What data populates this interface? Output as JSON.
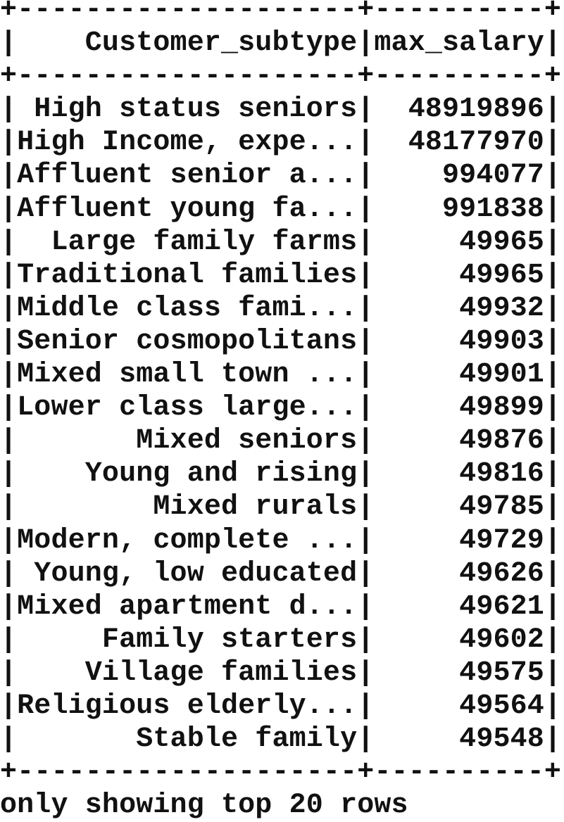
{
  "table": {
    "columns": [
      "Customer_subtype",
      "max_salary"
    ],
    "rows": [
      [
        "High status seniors",
        "48919896"
      ],
      [
        "High Income, expe...",
        "48177970"
      ],
      [
        "Affluent senior a...",
        "994077"
      ],
      [
        "Affluent young fa...",
        "991838"
      ],
      [
        "Large family farms",
        "49965"
      ],
      [
        "Traditional families",
        "49965"
      ],
      [
        "Middle class fami...",
        "49932"
      ],
      [
        "Senior cosmopolitans",
        "49903"
      ],
      [
        "Mixed small town ...",
        "49901"
      ],
      [
        "Lower class large...",
        "49899"
      ],
      [
        "Mixed seniors",
        "49876"
      ],
      [
        "Young and rising",
        "49816"
      ],
      [
        "Mixed rurals",
        "49785"
      ],
      [
        "Modern, complete ...",
        "49729"
      ],
      [
        "Young, low educated",
        "49626"
      ],
      [
        "Mixed apartment d...",
        "49621"
      ],
      [
        "Family starters",
        "49602"
      ],
      [
        "Village families",
        "49575"
      ],
      [
        "Religious elderly...",
        "49564"
      ],
      [
        "Stable family",
        "49548"
      ]
    ]
  },
  "footer": "only showing top 20 rows"
}
